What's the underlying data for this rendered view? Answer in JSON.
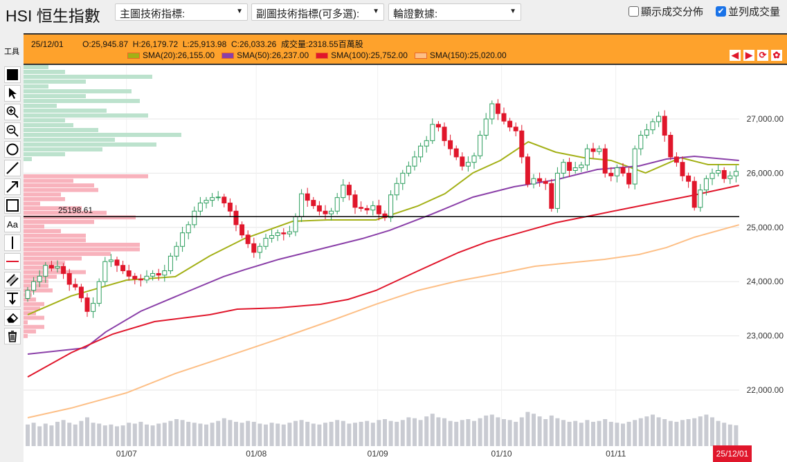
{
  "header": {
    "title": "HSI 恒生指數",
    "main_indicator": "主圖技術指標:",
    "sub_indicator": "副圖技術指標(可多選):",
    "warrant_data": "輪證數據:",
    "show_volume_dist": "顯示成交分佈",
    "show_volume_dist_checked": false,
    "parallel_volume": "並列成交量",
    "parallel_volume_checked": true
  },
  "info": {
    "date": "25/12/01",
    "open": "O:25,945.87",
    "high": "H:26,179.72",
    "low": "L:25,913.98",
    "close": "C:26,033.26",
    "volume": "成交量:2318.55百萬股",
    "sma": [
      {
        "label": "SMA(20):26,155.00",
        "color": "#a3b016"
      },
      {
        "label": "SMA(50):26,237.00",
        "color": "#8a3fa8"
      },
      {
        "label": "SMA(100):25,752.00",
        "color": "#e0162b"
      },
      {
        "label": "SMA(150):25,020.00",
        "color": "#fdbf86"
      }
    ]
  },
  "tools_label": "工具",
  "tools": [
    "fill-square",
    "pointer",
    "zoom-in",
    "zoom-out",
    "circle",
    "line",
    "arrow",
    "rectangle",
    "text",
    "vertical-line",
    "horizontal-line",
    "parallel-lines",
    "fibonacci",
    "eraser",
    "trash"
  ],
  "tool_text": "Aa",
  "nav_icons": [
    "arrow-left",
    "arrow-right",
    "refresh",
    "settings"
  ],
  "chart_data": {
    "type": "candlestick",
    "y_ticks": [
      "22,000.00",
      "23,000.00",
      "24,000.00",
      "25,000.00",
      "26,000.00",
      "27,000.00"
    ],
    "y_tick_values": [
      22000,
      23000,
      24000,
      25000,
      26000,
      27000
    ],
    "ylim": [
      21450,
      28000
    ],
    "x_ticks": [
      {
        "label": "01/07",
        "index": 16.6
      },
      {
        "label": "01/08",
        "index": 38.4
      },
      {
        "label": "01/09",
        "index": 58.8
      },
      {
        "label": "01/10",
        "index": 79.6
      },
      {
        "label": "01/11",
        "index": 98.8
      }
    ],
    "current_date_label": "25/12/01",
    "price_line": {
      "label": "25198.61",
      "value": 25198.61
    },
    "closes": [
      23840,
      24000,
      24100,
      24300,
      24250,
      24280,
      24150,
      23950,
      23900,
      23700,
      23450,
      23600,
      24000,
      24370,
      24400,
      24300,
      24200,
      24100,
      24050,
      24030,
      24100,
      24150,
      24120,
      24200,
      24470,
      24650,
      24900,
      25050,
      25300,
      25450,
      25500,
      25550,
      25560,
      25450,
      25300,
      25050,
      24860,
      24700,
      24540,
      24650,
      24800,
      24850,
      24900,
      24880,
      24920,
      25200,
      25620,
      25500,
      25400,
      25300,
      25250,
      25300,
      25550,
      25780,
      25600,
      25370,
      25350,
      25320,
      25400,
      25250,
      25180,
      25600,
      25810,
      26000,
      26130,
      26300,
      26500,
      26600,
      26900,
      26850,
      26600,
      26450,
      26300,
      26130,
      26200,
      26320,
      26700,
      27000,
      27280,
      27100,
      26960,
      26850,
      26780,
      26300,
      25800,
      25900,
      25850,
      25810,
      25350,
      26000,
      26200,
      26050,
      26100,
      26150,
      26450,
      26400,
      26450,
      26000,
      25950,
      26100,
      26000,
      25800,
      26450,
      26700,
      26800,
      26950,
      27050,
      26700,
      26300,
      26200,
      25950,
      25850,
      25370,
      25690,
      25900,
      26000,
      26050,
      25900,
      25950,
      26033
    ],
    "volumes": [
      2400,
      2600,
      2200,
      2500,
      2300,
      2700,
      2900,
      2600,
      2400,
      2800,
      3200,
      2600,
      2500,
      2300,
      2400,
      2200,
      2300,
      2600,
      2500,
      2700,
      2400,
      2300,
      2500,
      2600,
      2800,
      3000,
      2900,
      2700,
      2600,
      2500,
      2400,
      2600,
      2800,
      3100,
      2900,
      2700,
      2600,
      2800,
      2700,
      2500,
      2400,
      2600,
      2500,
      2400,
      2600,
      2800,
      2900,
      2700,
      2500,
      2400,
      2600,
      2700,
      2900,
      2800,
      2500,
      2600,
      2700,
      2800,
      2600,
      2900,
      3000,
      2800,
      2700,
      2900,
      3200,
      3100,
      2900,
      3300,
      3600,
      3200,
      3100,
      2800,
      2700,
      2900,
      3000,
      2800,
      3100,
      3400,
      3500,
      3200,
      3000,
      2900,
      2700,
      3200,
      3800,
      3600,
      3300,
      3000,
      3400,
      3100,
      2900,
      2700,
      2800,
      2600,
      2900,
      2700,
      2800,
      3000,
      2700,
      2600,
      2500,
      2700,
      2900,
      3100,
      3300,
      3500,
      3200,
      3000,
      2800,
      2700,
      2900,
      3000,
      3100,
      3300,
      3500,
      3200,
      2800,
      2600,
      2400,
      2318
    ],
    "sma": [
      {
        "name": "SMA(20)",
        "color": "#a3b016",
        "points": [
          [
            0,
            23390
          ],
          [
            7.3,
            23735
          ],
          [
            16.6,
            24028
          ],
          [
            24.8,
            24092
          ],
          [
            30.6,
            24475
          ],
          [
            36.4,
            24793
          ],
          [
            44.5,
            25112
          ],
          [
            50.3,
            25138
          ],
          [
            58.5,
            25138
          ],
          [
            65.5,
            25393
          ],
          [
            70.1,
            25622
          ],
          [
            74.8,
            26005
          ],
          [
            79.4,
            26235
          ],
          [
            84.1,
            26579
          ],
          [
            88.7,
            26388
          ],
          [
            93.4,
            26286
          ],
          [
            98,
            26235
          ],
          [
            103.8,
            26005
          ],
          [
            109.7,
            26286
          ],
          [
            114.3,
            26158
          ],
          [
            119.5,
            26158
          ]
        ]
      },
      {
        "name": "SMA(50)",
        "color": "#8a3fa8",
        "points": [
          [
            0,
            22663
          ],
          [
            9.7,
            22778
          ],
          [
            13.1,
            23071
          ],
          [
            19,
            23454
          ],
          [
            25.9,
            23773
          ],
          [
            32.9,
            24092
          ],
          [
            36.4,
            24219
          ],
          [
            42.2,
            24411
          ],
          [
            49.2,
            24602
          ],
          [
            56.2,
            24793
          ],
          [
            60.8,
            24946
          ],
          [
            67.8,
            25240
          ],
          [
            74.8,
            25559
          ],
          [
            81.7,
            25750
          ],
          [
            88.7,
            25878
          ],
          [
            95.7,
            26069
          ],
          [
            102.7,
            26133
          ],
          [
            107.3,
            26260
          ],
          [
            112,
            26311
          ],
          [
            119.5,
            26235
          ]
        ]
      },
      {
        "name": "SMA(100)",
        "color": "#e0162b",
        "points": [
          [
            0,
            22242
          ],
          [
            7.3,
            22689
          ],
          [
            14.3,
            23033
          ],
          [
            21.3,
            23263
          ],
          [
            30.6,
            23390
          ],
          [
            35.2,
            23492
          ],
          [
            42.2,
            23518
          ],
          [
            49.2,
            23582
          ],
          [
            53.8,
            23671
          ],
          [
            58.5,
            23837
          ],
          [
            65.5,
            24194
          ],
          [
            72.4,
            24538
          ],
          [
            77.1,
            24730
          ],
          [
            84.1,
            24946
          ],
          [
            88.7,
            25087
          ],
          [
            95.7,
            25240
          ],
          [
            100.3,
            25342
          ],
          [
            107.3,
            25495
          ],
          [
            112,
            25597
          ],
          [
            119.5,
            25776
          ]
        ]
      },
      {
        "name": "SMA(150)",
        "color": "#fdbf86",
        "points": [
          [
            0,
            21490
          ],
          [
            7.3,
            21668
          ],
          [
            16.6,
            21949
          ],
          [
            24.8,
            22306
          ],
          [
            32.9,
            22600
          ],
          [
            42.2,
            22944
          ],
          [
            51.5,
            23301
          ],
          [
            58.5,
            23582
          ],
          [
            65.5,
            23837
          ],
          [
            72.4,
            24015
          ],
          [
            79.4,
            24156
          ],
          [
            85.2,
            24283
          ],
          [
            91,
            24347
          ],
          [
            96.9,
            24411
          ],
          [
            102.7,
            24500
          ],
          [
            107.3,
            24628
          ],
          [
            112,
            24819
          ],
          [
            119.5,
            25048
          ]
        ]
      }
    ],
    "volume_profile_up": [
      0.12,
      0.2,
      0.62,
      0.3,
      0.12,
      0.52,
      0.3,
      0.56,
      0.16,
      0.4,
      0.6,
      0.2,
      0.24,
      0.36,
      0.76,
      0.44,
      0.64,
      0.38,
      0.2,
      0.04
    ],
    "volume_profile_down": [
      0.6,
      0.24,
      0.34,
      0.36,
      0.18,
      0.2,
      0.08,
      0.28,
      0.4,
      0.54,
      0.34,
      0.1,
      0.18,
      0.3,
      0.3,
      0.56,
      0.56,
      0.42,
      0.28,
      0.2,
      0.2,
      0.3,
      0.16,
      0.12,
      0.12,
      0.14,
      0.04,
      0.06,
      0.1,
      0.08,
      0.06,
      0.1,
      0.02,
      0.1,
      0.06,
      0.02
    ]
  }
}
